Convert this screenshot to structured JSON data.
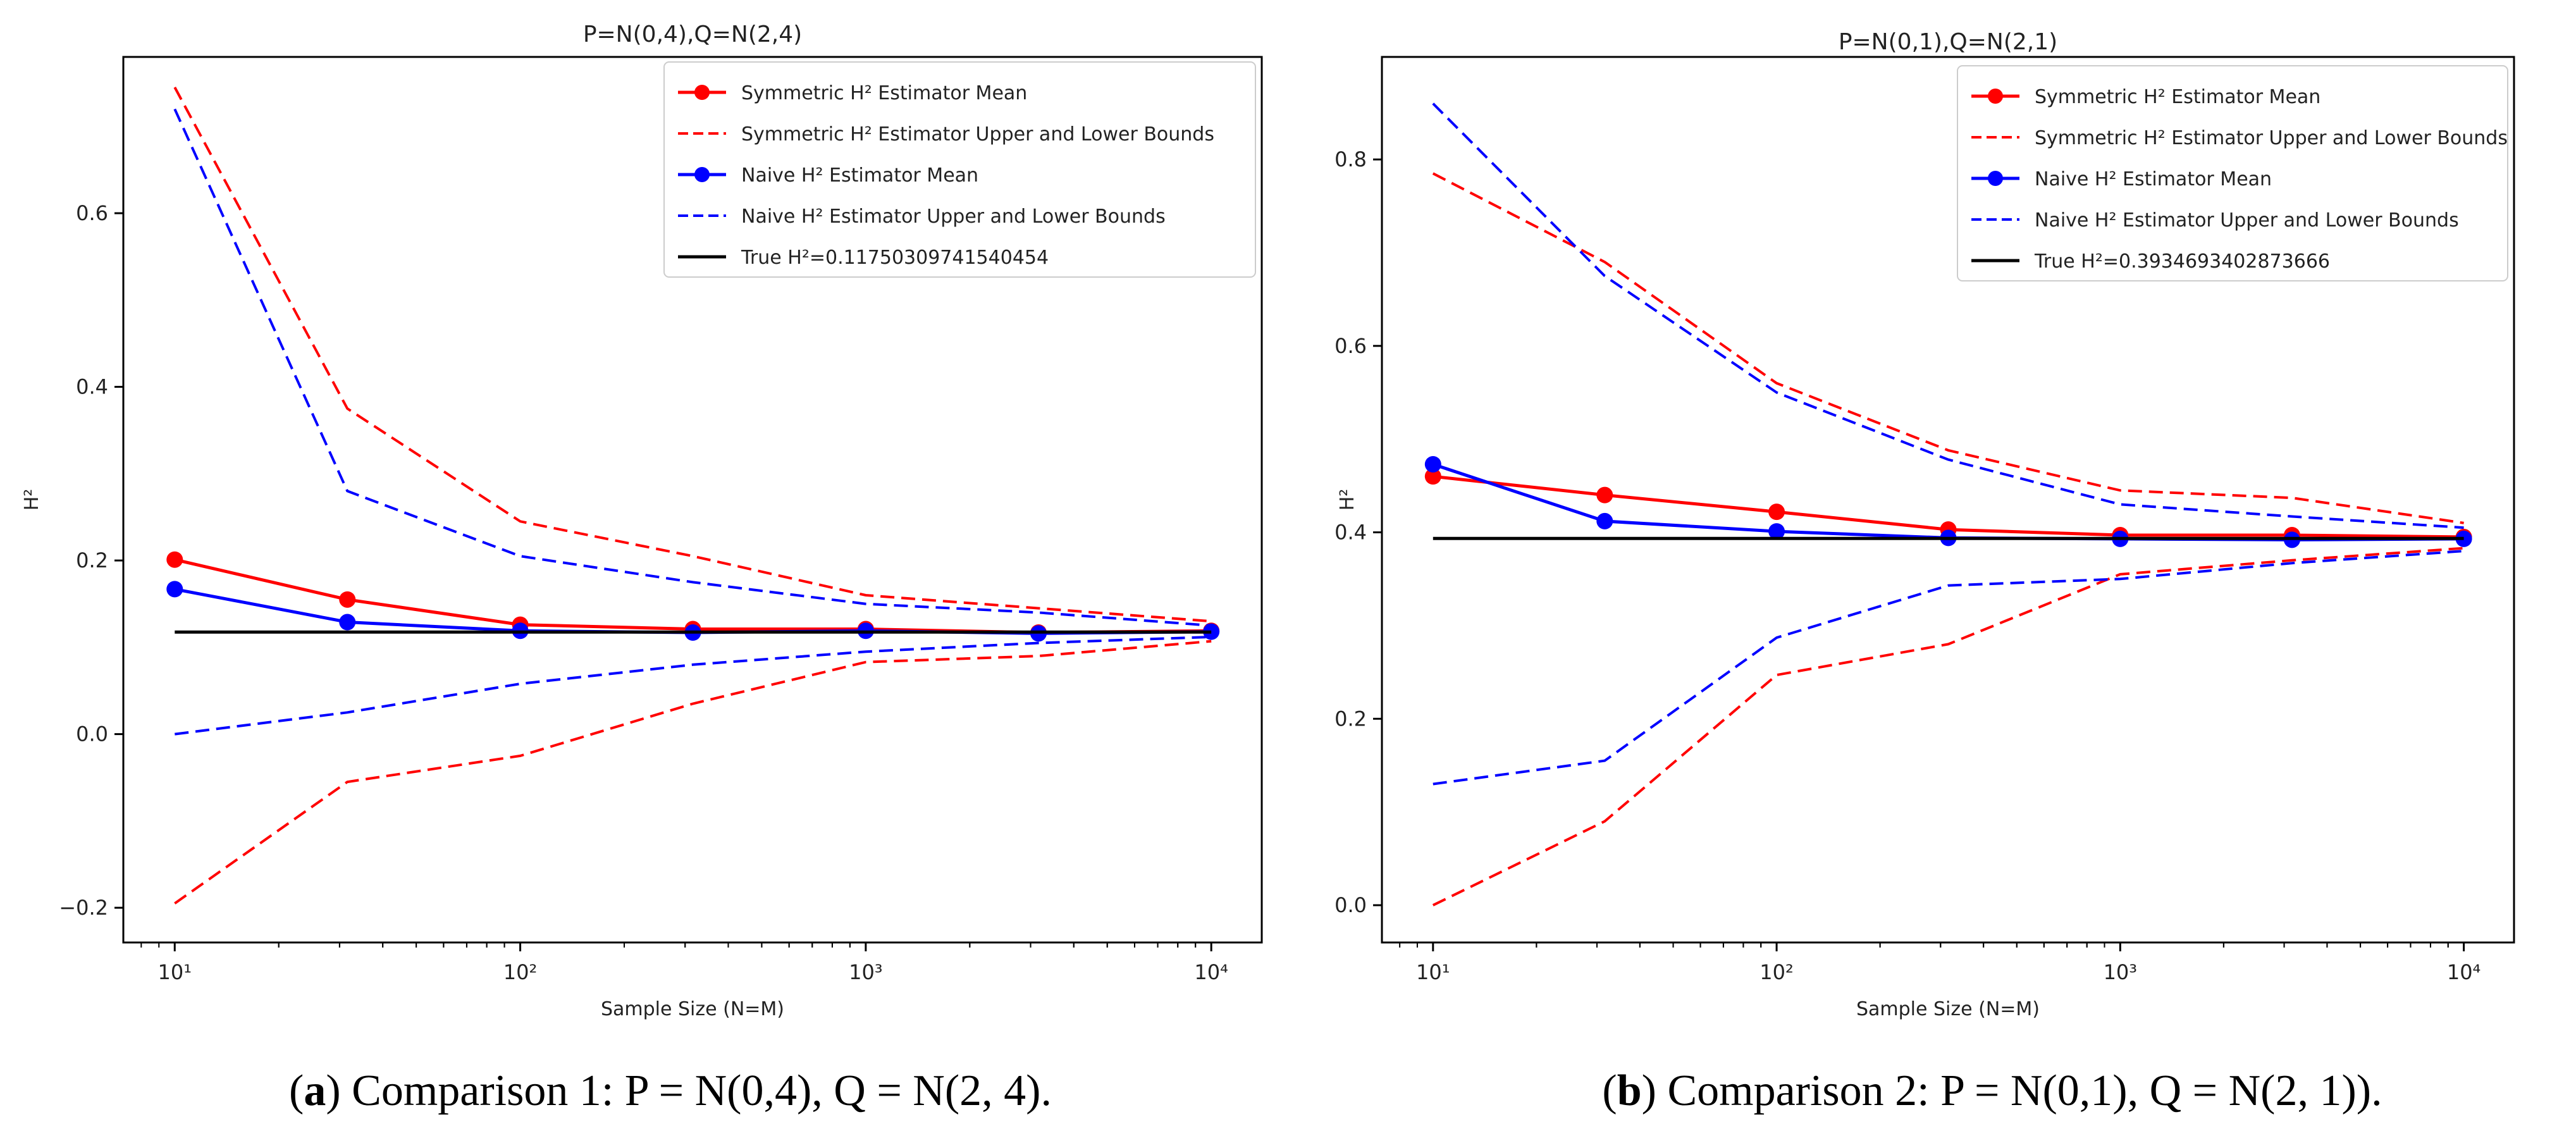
{
  "figure": {
    "captions": [
      {
        "bold": "a",
        "text": " Comparison 1: P = N(0,4), Q = N(2, 4)."
      },
      {
        "bold": "b",
        "text": " Comparison 2: P = N(0,1), Q = N(2, 1))."
      }
    ]
  },
  "colors": {
    "symmetric": "#ff0000",
    "naive": "#0000ff",
    "true": "#000000"
  },
  "chart_data": [
    {
      "type": "line",
      "title": "P=N(0,4),Q=N(2,4)",
      "xlabel": "Sample Size (N=M)",
      "ylabel": "H²",
      "xscale": "log",
      "xlim": [
        7.1,
        14000
      ],
      "ylim": [
        -0.24,
        0.78
      ],
      "xticks": [
        10,
        100,
        1000,
        10000
      ],
      "xtick_labels": [
        "10¹",
        "10²",
        "10³",
        "10⁴"
      ],
      "yticks": [
        -0.2,
        0.0,
        0.2,
        0.4,
        0.6
      ],
      "ytick_labels": [
        "−0.2",
        "0.0",
        "0.2",
        "0.4",
        "0.6"
      ],
      "grid": false,
      "legend_position": "top-right",
      "x": [
        10,
        31.6,
        100,
        316,
        1000,
        3162,
        10000
      ],
      "series": [
        {
          "name": "Symmetric H² Estimator Mean",
          "color": "symmetric",
          "style": "solid",
          "markers": true,
          "values": [
            0.201,
            0.155,
            0.126,
            0.121,
            0.121,
            0.117,
            0.119
          ]
        },
        {
          "name": "Symmetric H² Estimator Upper and Lower Bounds",
          "color": "symmetric",
          "style": "dashed",
          "markers": false,
          "values": [
            0.745,
            0.375,
            0.245,
            0.205,
            0.16,
            0.145,
            0.13
          ]
        },
        {
          "name": "",
          "color": "symmetric",
          "style": "dashed",
          "markers": false,
          "values": [
            -0.195,
            -0.055,
            -0.025,
            0.035,
            0.083,
            0.09,
            0.107
          ]
        },
        {
          "name": "Naive H² Estimator Mean",
          "color": "naive",
          "style": "solid",
          "markers": true,
          "values": [
            0.167,
            0.129,
            0.119,
            0.117,
            0.119,
            0.116,
            0.118
          ]
        },
        {
          "name": "Naive H² Estimator Upper and Lower Bounds",
          "color": "naive",
          "style": "dashed",
          "markers": false,
          "values": [
            0.72,
            0.28,
            0.205,
            0.175,
            0.15,
            0.14,
            0.125
          ]
        },
        {
          "name": "",
          "color": "naive",
          "style": "dashed",
          "markers": false,
          "values": [
            0.0,
            0.025,
            0.058,
            0.08,
            0.095,
            0.105,
            0.112
          ]
        },
        {
          "name": "True H²=0.11750309741540454",
          "color": "true",
          "style": "solid",
          "markers": false,
          "values": [
            0.1175,
            0.1175,
            0.1175,
            0.1175,
            0.1175,
            0.1175,
            0.1175
          ]
        }
      ]
    },
    {
      "type": "line",
      "title": "P=N(0,1),Q=N(2,1)",
      "xlabel": "Sample Size (N=M)",
      "ylabel": "H²",
      "xscale": "log",
      "xlim": [
        7.1,
        14000
      ],
      "ylim": [
        -0.04,
        0.91
      ],
      "xticks": [
        10,
        100,
        1000,
        10000
      ],
      "xtick_labels": [
        "10¹",
        "10²",
        "10³",
        "10⁴"
      ],
      "yticks": [
        0.0,
        0.2,
        0.4,
        0.6,
        0.8
      ],
      "ytick_labels": [
        "0.0",
        "0.2",
        "0.4",
        "0.6",
        "0.8"
      ],
      "grid": false,
      "legend_position": "top-right",
      "x": [
        10,
        31.6,
        100,
        316,
        1000,
        3162,
        10000
      ],
      "series": [
        {
          "name": "Symmetric H² Estimator Mean",
          "color": "symmetric",
          "style": "solid",
          "markers": true,
          "values": [
            0.46,
            0.44,
            0.422,
            0.403,
            0.397,
            0.397,
            0.395
          ]
        },
        {
          "name": "Symmetric H² Estimator Upper and Lower Bounds",
          "color": "symmetric",
          "style": "dashed",
          "markers": false,
          "values": [
            0.785,
            0.69,
            0.56,
            0.488,
            0.445,
            0.437,
            0.41
          ]
        },
        {
          "name": "",
          "color": "symmetric",
          "style": "dashed",
          "markers": false,
          "values": [
            0.0,
            0.09,
            0.247,
            0.28,
            0.355,
            0.37,
            0.383
          ]
        },
        {
          "name": "Naive H² Estimator Mean",
          "color": "naive",
          "style": "solid",
          "markers": true,
          "values": [
            0.473,
            0.412,
            0.401,
            0.394,
            0.393,
            0.392,
            0.393
          ]
        },
        {
          "name": "Naive H² Estimator Upper and Lower Bounds",
          "color": "naive",
          "style": "dashed",
          "markers": false,
          "values": [
            0.86,
            0.675,
            0.55,
            0.478,
            0.43,
            0.417,
            0.405
          ]
        },
        {
          "name": "",
          "color": "naive",
          "style": "dashed",
          "markers": false,
          "values": [
            0.13,
            0.155,
            0.287,
            0.343,
            0.35,
            0.367,
            0.38
          ]
        },
        {
          "name": "True H²=0.3934693402873666",
          "color": "true",
          "style": "solid",
          "markers": false,
          "values": [
            0.3935,
            0.3935,
            0.3935,
            0.3935,
            0.3935,
            0.3935,
            0.3935
          ]
        }
      ]
    }
  ]
}
